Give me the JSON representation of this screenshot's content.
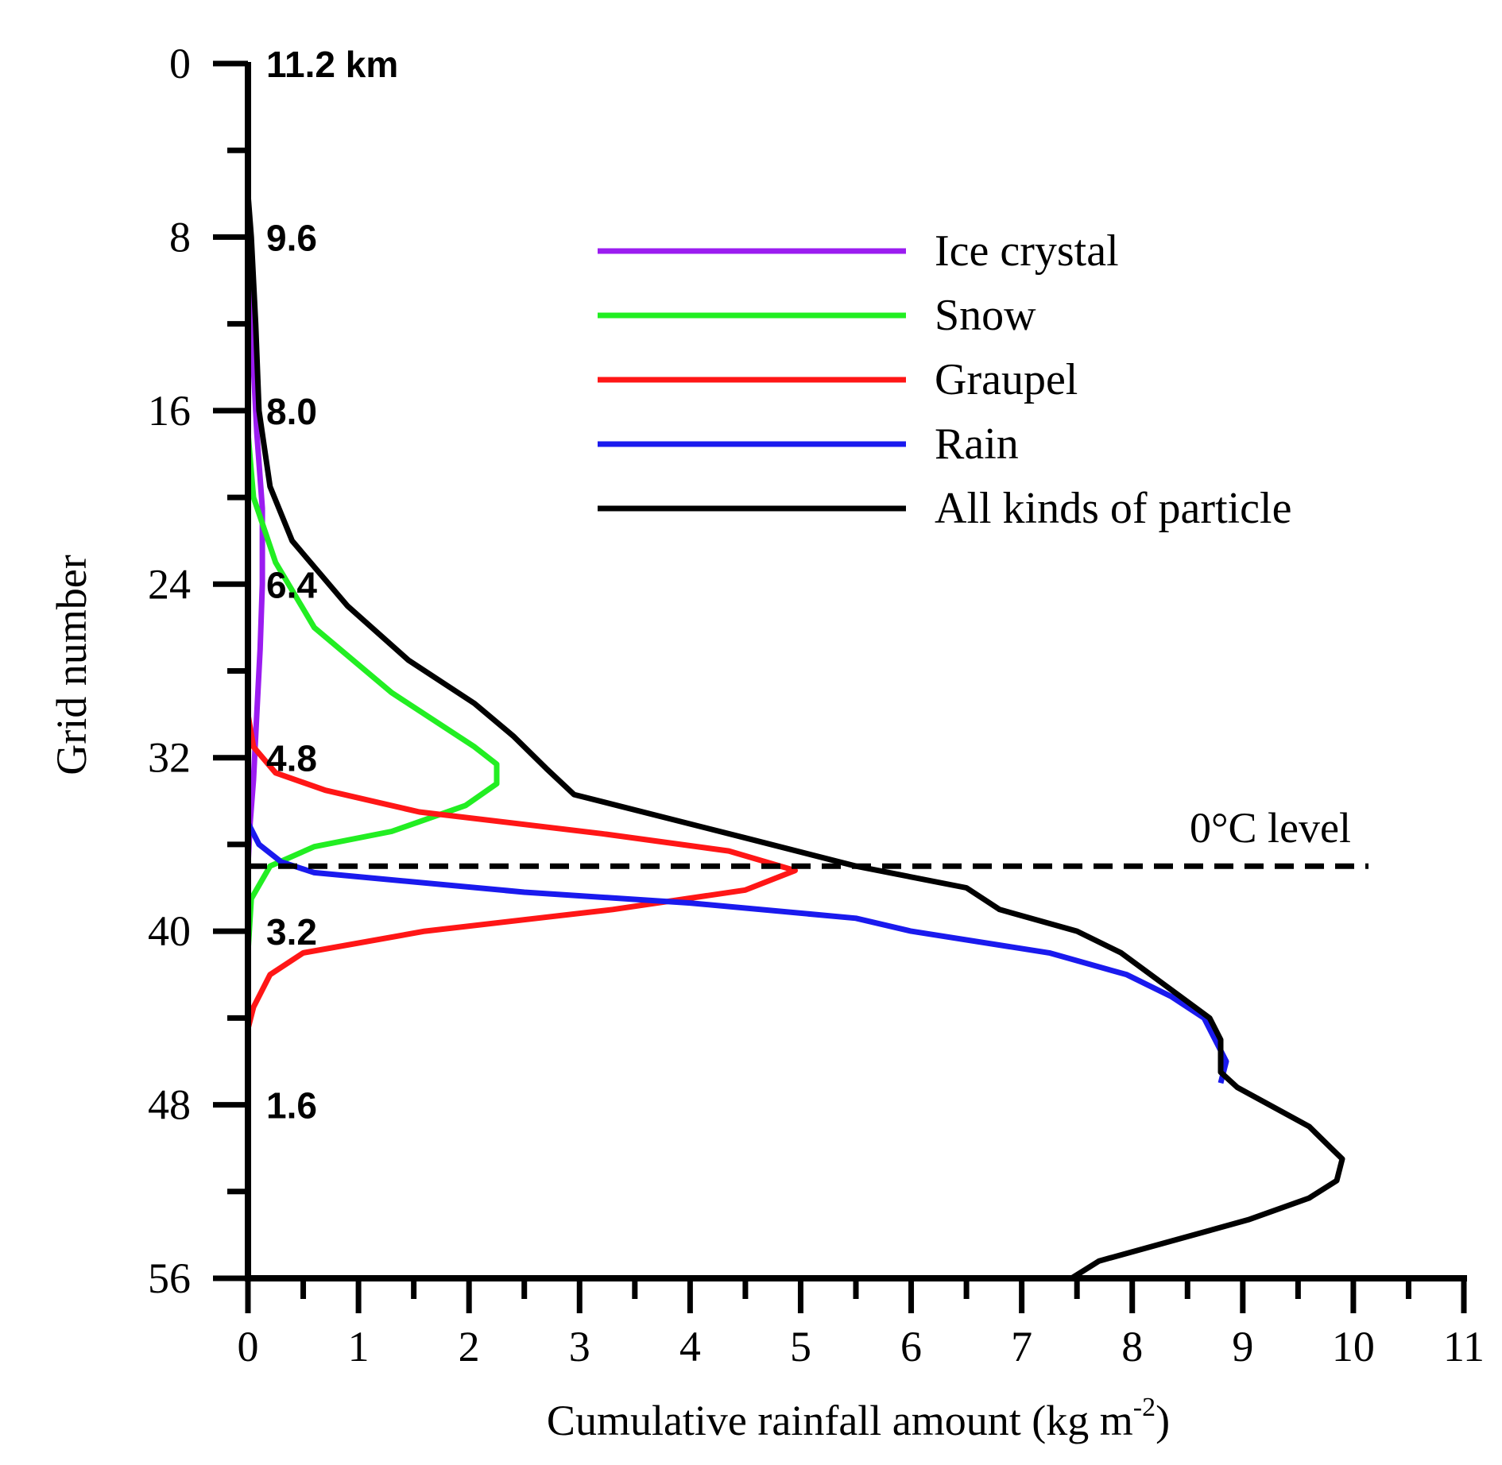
{
  "chart_data": {
    "type": "line",
    "xlabel_main": "Cumulative rainfall amount (kg m",
    "xlabel_sup": "-2",
    "xlabel_close": ")",
    "ylabel": "Grid number",
    "xlim": [
      0,
      11
    ],
    "ylim": [
      56,
      0
    ],
    "y_inverted": true,
    "x_ticks": [
      "0",
      "1",
      "2",
      "3",
      "4",
      "5",
      "6",
      "7",
      "8",
      "9",
      "10",
      "11"
    ],
    "y_ticks": [
      "0",
      "8",
      "16",
      "24",
      "32",
      "40",
      "48",
      "56"
    ],
    "height_labels": [
      {
        "grid": 0,
        "text": "11.2 km"
      },
      {
        "grid": 8,
        "text": "9.6"
      },
      {
        "grid": 16,
        "text": "8.0"
      },
      {
        "grid": 24,
        "text": "6.4"
      },
      {
        "grid": 32,
        "text": "4.8"
      },
      {
        "grid": 40,
        "text": "3.2"
      },
      {
        "grid": 48,
        "text": "1.6"
      }
    ],
    "reference_line": {
      "grid": 37,
      "label": "0°C level"
    },
    "legend_placement": "top-right",
    "grid": false,
    "series": [
      {
        "name": "Ice crystal",
        "color": "#9b1cf0",
        "points": [
          [
            0,
            7
          ],
          [
            0.03,
            12
          ],
          [
            0.08,
            17
          ],
          [
            0.13,
            20.5
          ],
          [
            0.13,
            24
          ],
          [
            0.11,
            27
          ],
          [
            0.08,
            30
          ],
          [
            0.05,
            33
          ],
          [
            0.02,
            35
          ],
          [
            0,
            37
          ],
          [
            0,
            56
          ]
        ]
      },
      {
        "name": "Snow",
        "color": "#22ee22",
        "points": [
          [
            0,
            17
          ],
          [
            0.05,
            20
          ],
          [
            0.25,
            23
          ],
          [
            0.6,
            26
          ],
          [
            1.3,
            29
          ],
          [
            2.05,
            31.5
          ],
          [
            2.25,
            32.3
          ],
          [
            2.25,
            33.2
          ],
          [
            1.97,
            34.2
          ],
          [
            1.3,
            35.4
          ],
          [
            0.6,
            36.1
          ],
          [
            0.2,
            37
          ],
          [
            0.03,
            38.5
          ],
          [
            0,
            41
          ],
          [
            0,
            56
          ]
        ]
      },
      {
        "name": "Graupel",
        "color": "#ff1616",
        "points": [
          [
            0,
            8
          ],
          [
            0,
            30
          ],
          [
            0.05,
            31.5
          ],
          [
            0.25,
            32.7
          ],
          [
            0.7,
            33.5
          ],
          [
            1.55,
            34.5
          ],
          [
            3.2,
            35.5
          ],
          [
            4.35,
            36.3
          ],
          [
            4.95,
            37.2
          ],
          [
            4.5,
            38.1
          ],
          [
            3.3,
            39
          ],
          [
            1.6,
            40
          ],
          [
            0.5,
            41
          ],
          [
            0.2,
            42
          ],
          [
            0.05,
            43.5
          ],
          [
            0,
            44.5
          ],
          [
            0,
            56
          ]
        ]
      },
      {
        "name": "Rain",
        "color": "#1a1aee",
        "points": [
          [
            0,
            29
          ],
          [
            0,
            35
          ],
          [
            0.1,
            36
          ],
          [
            0.3,
            36.8
          ],
          [
            0.6,
            37.3
          ],
          [
            2.5,
            38.2
          ],
          [
            4,
            38.7
          ],
          [
            5.5,
            39.4
          ],
          [
            6,
            40
          ],
          [
            7.25,
            41
          ],
          [
            7.95,
            42
          ],
          [
            8.35,
            43
          ],
          [
            8.65,
            44
          ],
          [
            8.85,
            46
          ],
          [
            8.8,
            47
          ]
        ]
      },
      {
        "name": "All kinds of particle",
        "color": "#000000",
        "points": [
          [
            0,
            6
          ],
          [
            0.03,
            8
          ],
          [
            0.07,
            12
          ],
          [
            0.1,
            16
          ],
          [
            0.2,
            19.5
          ],
          [
            0.4,
            22
          ],
          [
            0.9,
            25
          ],
          [
            1.45,
            27.5
          ],
          [
            2.05,
            29.5
          ],
          [
            2.4,
            31
          ],
          [
            2.7,
            32.5
          ],
          [
            2.95,
            33.7
          ],
          [
            4.5,
            35.7
          ],
          [
            5.5,
            37
          ],
          [
            6.5,
            38
          ],
          [
            6.8,
            39
          ],
          [
            7.5,
            40
          ],
          [
            7.9,
            41
          ],
          [
            8.7,
            44
          ],
          [
            8.8,
            45
          ],
          [
            8.8,
            46.5
          ],
          [
            8.95,
            47.2
          ],
          [
            9.6,
            49
          ],
          [
            9.8,
            50
          ],
          [
            9.9,
            50.5
          ],
          [
            9.85,
            51.5
          ],
          [
            9.6,
            52.3
          ],
          [
            9.05,
            53.3
          ],
          [
            7.7,
            55.2
          ],
          [
            7.45,
            56
          ]
        ]
      }
    ]
  }
}
